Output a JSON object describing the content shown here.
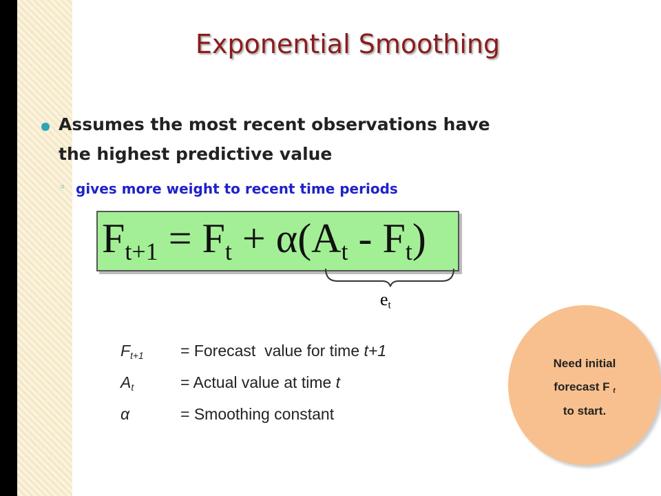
{
  "title": "Exponential Smoothing",
  "bullet": {
    "lines": [
      "Assumes the most recent observations have",
      "the highest predictive value"
    ],
    "sub": "gives more weight to recent time periods"
  },
  "formula": {
    "parts": [
      {
        "text": "F",
        "sub": "t+1"
      },
      {
        "text": " = F",
        "sub": "t"
      },
      {
        "text": " + α(A",
        "sub": "t"
      },
      {
        "text": " - F",
        "sub": "t"
      },
      {
        "text": ")"
      }
    ],
    "brace_label": {
      "text": "e",
      "sub": "t"
    }
  },
  "definitions": [
    {
      "symbol": "F",
      "symbol_sub": "t+1",
      "text": "= Forecast  value for time ",
      "text_italic": "t+1"
    },
    {
      "symbol": "A",
      "symbol_sub": "t",
      "text": "= Actual value at time ",
      "text_italic": "t"
    },
    {
      "symbol": "α",
      "text": "= Smoothing constant"
    }
  ],
  "callout": {
    "line1": "Need initial",
    "line2": "forecast F",
    "line2_sub": "t",
    "line3": "to start."
  }
}
